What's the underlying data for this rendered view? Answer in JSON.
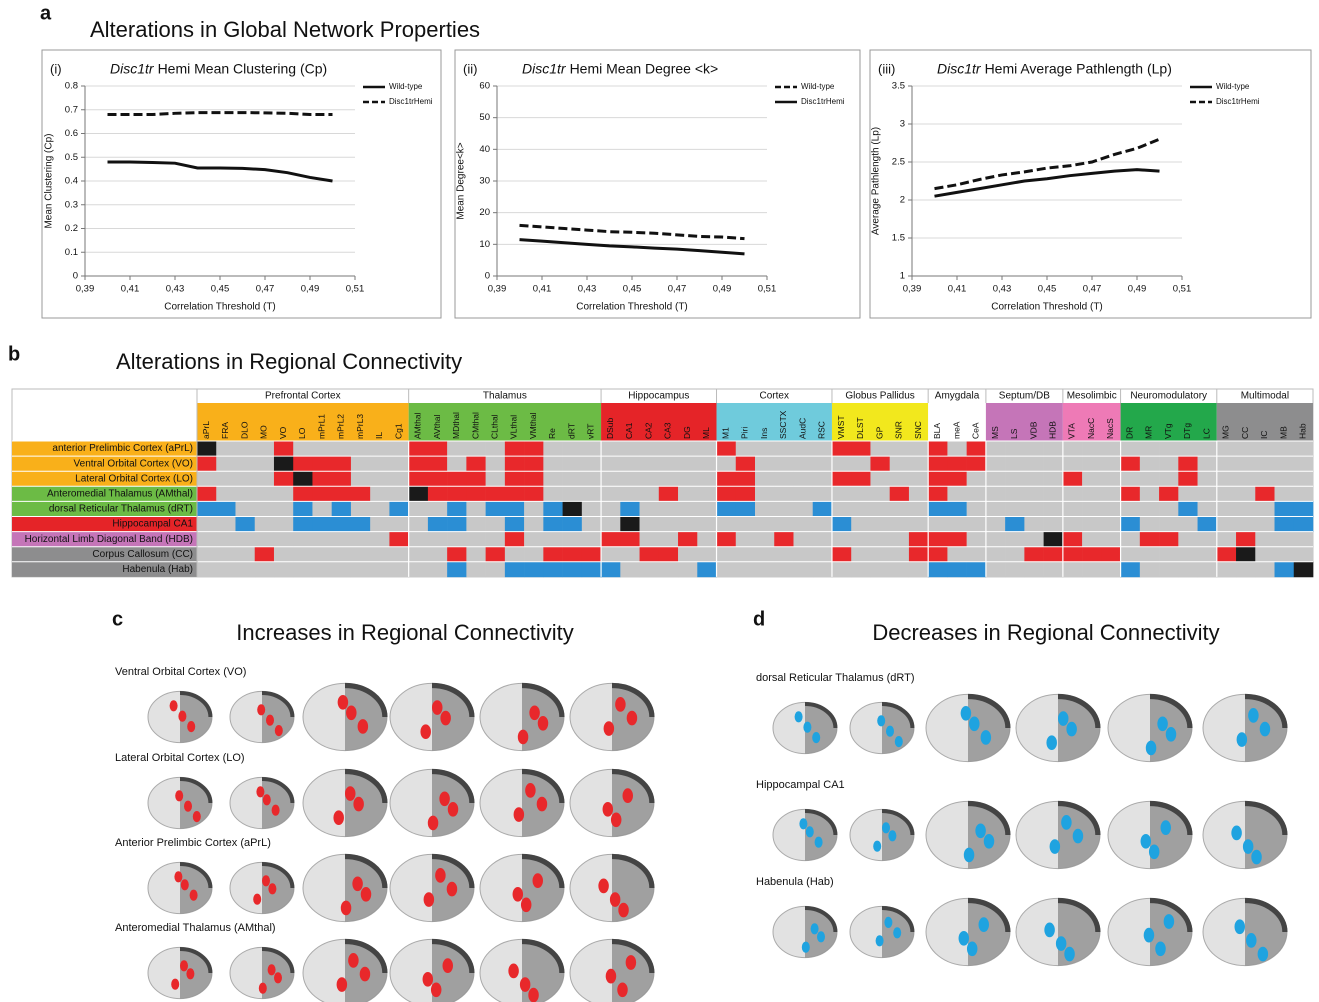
{
  "panels": [
    {
      "letter": "a",
      "title": "Alterations in Global Network Properties"
    },
    {
      "letter": "b",
      "title": "Alterations in Regional Connectivity"
    },
    {
      "letter": "c",
      "title": "Increases in Regional Connectivity",
      "rows": [
        "Ventral Orbital Cortex (VO)",
        "Lateral Orbital Cortex (LO)",
        "Anterior Prelimbic Cortex (aPrL)",
        "Anteromedial Thalamus (AMthal)"
      ]
    },
    {
      "letter": "d",
      "title": "Decreases in Regional Connectivity",
      "rows": [
        "dorsal Reticular Thalamus (dRT)",
        "Hippocampal CA1",
        "Habenula (Hab)"
      ]
    }
  ],
  "chart_data": [
    {
      "type": "line",
      "panel_label": "(i)",
      "title_italic": "Disc1tr",
      "title": "Hemi Mean Clustering (Cp)",
      "xlabel": "Correlation Threshold (T)",
      "ylabel": "Mean Clustering (Cp)",
      "x": [
        0.4,
        0.41,
        0.42,
        0.43,
        0.44,
        0.45,
        0.46,
        0.47,
        0.48,
        0.49,
        0.5
      ],
      "xlim": [
        0.39,
        0.51
      ],
      "xticks": [
        {
          "value": 0.39,
          "label": "0,39"
        },
        {
          "value": 0.41,
          "label": "0,41"
        },
        {
          "value": 0.43,
          "label": "0,43"
        },
        {
          "value": 0.45,
          "label": "0,45"
        },
        {
          "value": 0.47,
          "label": "0,47"
        },
        {
          "value": 0.49,
          "label": "0,49"
        },
        {
          "value": 0.51,
          "label": "0,51"
        }
      ],
      "ylim": [
        0,
        0.8
      ],
      "yticks": [
        0,
        0.1,
        0.2,
        0.3,
        0.4,
        0.5,
        0.6,
        0.7,
        0.8
      ],
      "grid": true,
      "legend": "right",
      "series": [
        {
          "name": "Wild-type",
          "color": "#111111",
          "line_style": "solid",
          "values": [
            0.48,
            0.48,
            0.478,
            0.475,
            0.455,
            0.455,
            0.453,
            0.448,
            0.435,
            0.415,
            0.4
          ]
        },
        {
          "name": "Disc1trHemi",
          "color": "#111111",
          "line_style": "dashed",
          "values": [
            0.68,
            0.68,
            0.68,
            0.685,
            0.688,
            0.688,
            0.688,
            0.687,
            0.685,
            0.68,
            0.68
          ]
        }
      ]
    },
    {
      "type": "line",
      "panel_label": "(ii)",
      "title_italic": "Disc1tr",
      "title": "Hemi Mean Degree <k>",
      "xlabel": "Correlation Threshold (T)",
      "ylabel": "Mean Degree<k>",
      "x": [
        0.4,
        0.41,
        0.42,
        0.43,
        0.44,
        0.45,
        0.46,
        0.47,
        0.48,
        0.49,
        0.5
      ],
      "xlim": [
        0.39,
        0.51
      ],
      "xticks": [
        {
          "value": 0.39,
          "label": "0,39"
        },
        {
          "value": 0.41,
          "label": "0,41"
        },
        {
          "value": 0.43,
          "label": "0,43"
        },
        {
          "value": 0.45,
          "label": "0,45"
        },
        {
          "value": 0.47,
          "label": "0,47"
        },
        {
          "value": 0.49,
          "label": "0,49"
        },
        {
          "value": 0.51,
          "label": "0,51"
        }
      ],
      "ylim": [
        0,
        60
      ],
      "yticks": [
        0,
        10,
        20,
        30,
        40,
        50,
        60
      ],
      "grid": true,
      "legend": "right",
      "series": [
        {
          "name": "Wild-type",
          "color": "#111111",
          "line_style": "dashed",
          "values": [
            16,
            15.5,
            15,
            14.5,
            14,
            13.8,
            13.5,
            13,
            12.5,
            12.3,
            11.8
          ]
        },
        {
          "name": "Disc1trHemi",
          "color": "#111111",
          "line_style": "solid",
          "values": [
            11.5,
            11,
            10.5,
            10,
            9.5,
            9.2,
            8.8,
            8.5,
            8,
            7.5,
            7
          ]
        }
      ]
    },
    {
      "type": "line",
      "panel_label": "(iii)",
      "title_italic": "Disc1tr",
      "title": "Hemi Average Pathlength (Lp)",
      "xlabel": "Correlation Threshold (T)",
      "ylabel": "Average Pathlength (Lp)",
      "x": [
        0.4,
        0.41,
        0.42,
        0.43,
        0.44,
        0.45,
        0.46,
        0.47,
        0.48,
        0.49,
        0.5
      ],
      "xlim": [
        0.39,
        0.51
      ],
      "xticks": [
        {
          "value": 0.39,
          "label": "0,39"
        },
        {
          "value": 0.41,
          "label": "0,41"
        },
        {
          "value": 0.43,
          "label": "0,43"
        },
        {
          "value": 0.45,
          "label": "0,45"
        },
        {
          "value": 0.47,
          "label": "0,47"
        },
        {
          "value": 0.49,
          "label": "0,49"
        },
        {
          "value": 0.51,
          "label": "0,51"
        }
      ],
      "ylim": [
        1,
        3.5
      ],
      "yticks": [
        1,
        1.5,
        2,
        2.5,
        3,
        3.5
      ],
      "grid": true,
      "legend": "right",
      "series": [
        {
          "name": "Wild-type",
          "color": "#111111",
          "line_style": "solid",
          "values": [
            2.05,
            2.1,
            2.15,
            2.2,
            2.25,
            2.28,
            2.32,
            2.35,
            2.38,
            2.4,
            2.38
          ]
        },
        {
          "name": "Disc1trHemi",
          "color": "#111111",
          "line_style": "dashed",
          "values": [
            2.15,
            2.2,
            2.27,
            2.33,
            2.37,
            2.42,
            2.45,
            2.5,
            2.6,
            2.68,
            2.8
          ]
        }
      ]
    },
    {
      "type": "heatmap",
      "colors": {
        "increase": "#e8282b",
        "decrease": "#2b8ed4",
        "none": "#c8c8c8",
        "self": "#1a1a1a"
      },
      "groups": [
        {
          "name": "Prefrontal Cortex",
          "color": "#f9b01a",
          "columns": [
            "aPrL",
            "FRA",
            "DLO",
            "MO",
            "VO",
            "LO",
            "mPrL1",
            "mPrL2",
            "mPrL3",
            "IL",
            "Cg1"
          ]
        },
        {
          "name": "Thalamus",
          "color": "#6cbb45",
          "columns": [
            "AMthal",
            "AVthal",
            "MDthal",
            "CMthal",
            "CLthal",
            "VLthal",
            "VMthal",
            "Re",
            "dRT",
            "vRT"
          ]
        },
        {
          "name": "Hippocampus",
          "color": "#e52428",
          "columns": [
            "DSub",
            "CA1",
            "CA2",
            "CA3",
            "DG",
            "ML"
          ]
        },
        {
          "name": "Cortex",
          "color": "#6fcbdc",
          "columns": [
            "M1",
            "Piri",
            "Ins",
            "SSCTX",
            "AudC",
            "RSC"
          ]
        },
        {
          "name": "Globus Pallidus",
          "color": "#f2e81d",
          "columns": [
            "VMST",
            "DLST",
            "GP",
            "SNR",
            "SNC"
          ]
        },
        {
          "name": "Amygdala",
          "color": "#ffffff",
          "columns": [
            "BLA",
            "meA",
            "CeA"
          ]
        },
        {
          "name": "Septum/DB",
          "color": "#c575b8",
          "columns": [
            "MS",
            "LS",
            "VDB",
            "HDB"
          ]
        },
        {
          "name": "Mesolimbic",
          "color": "#ee7ab6",
          "columns": [
            "VTA",
            "NacC",
            "NacS"
          ]
        },
        {
          "name": "Neuromodulatory",
          "color": "#23a84b",
          "columns": [
            "DR",
            "MR",
            "VTg",
            "DTg",
            "LC"
          ]
        },
        {
          "name": "Multimodal",
          "color": "#8d8d8e",
          "columns": [
            "MG",
            "CC",
            "IC",
            "MB",
            "Hab"
          ]
        }
      ],
      "rows": [
        {
          "label": "anterior Prelimbic Cortex (aPrL)",
          "color": "#f9b01a",
          "values": [
            null,
            0,
            0,
            0,
            1,
            0,
            0,
            0,
            0,
            0,
            0,
            1,
            1,
            0,
            0,
            0,
            1,
            1,
            0,
            0,
            0,
            0,
            0,
            0,
            0,
            0,
            0,
            1,
            0,
            0,
            0,
            0,
            0,
            1,
            1,
            0,
            0,
            0,
            1,
            0,
            1,
            0,
            0,
            0,
            0,
            0,
            0,
            0,
            0,
            0,
            0,
            0,
            0,
            0,
            0,
            0,
            0,
            0
          ]
        },
        {
          "label": "Ventral Orbital Cortex (VO)",
          "color": "#f9b01a",
          "values": [
            1,
            0,
            0,
            0,
            null,
            1,
            1,
            1,
            0,
            0,
            0,
            1,
            1,
            0,
            1,
            0,
            1,
            1,
            0,
            0,
            0,
            0,
            0,
            0,
            0,
            0,
            0,
            0,
            1,
            0,
            0,
            0,
            0,
            0,
            0,
            1,
            0,
            0,
            1,
            1,
            1,
            0,
            0,
            0,
            0,
            0,
            0,
            0,
            1,
            0,
            0,
            1,
            0,
            0,
            0,
            0,
            0,
            0
          ]
        },
        {
          "label": "Lateral Orbital Cortex (LO)",
          "color": "#f9b01a",
          "values": [
            0,
            0,
            0,
            0,
            1,
            null,
            1,
            1,
            0,
            0,
            0,
            1,
            1,
            1,
            1,
            0,
            1,
            1,
            0,
            0,
            0,
            0,
            0,
            0,
            0,
            0,
            0,
            1,
            1,
            0,
            0,
            0,
            0,
            1,
            1,
            0,
            0,
            0,
            1,
            1,
            0,
            0,
            0,
            0,
            0,
            1,
            0,
            0,
            0,
            0,
            0,
            1,
            0,
            0,
            0,
            0,
            0,
            0
          ]
        },
        {
          "label": "Anteromedial Thalamus (AMthal)",
          "color": "#6cbb45",
          "values": [
            1,
            0,
            0,
            0,
            0,
            1,
            1,
            1,
            1,
            0,
            0,
            null,
            1,
            1,
            1,
            1,
            1,
            1,
            0,
            0,
            0,
            0,
            0,
            0,
            1,
            0,
            0,
            1,
            1,
            0,
            0,
            0,
            0,
            0,
            0,
            0,
            1,
            0,
            1,
            0,
            0,
            0,
            0,
            0,
            0,
            0,
            0,
            0,
            1,
            0,
            1,
            0,
            0,
            0,
            0,
            1,
            0,
            0
          ]
        },
        {
          "label": "dorsal Reticular Thalamus (dRT)",
          "color": "#6cbb45",
          "values": [
            -1,
            -1,
            0,
            0,
            0,
            -1,
            0,
            -1,
            0,
            0,
            -1,
            0,
            0,
            -1,
            0,
            -1,
            -1,
            0,
            -1,
            null,
            0,
            0,
            -1,
            0,
            0,
            0,
            0,
            -1,
            -1,
            0,
            0,
            0,
            -1,
            0,
            0,
            0,
            0,
            0,
            -1,
            -1,
            0,
            0,
            0,
            0,
            0,
            0,
            0,
            0,
            0,
            0,
            0,
            -1,
            0,
            0,
            0,
            0,
            -1,
            -1
          ]
        },
        {
          "label": "Hippocampal CA1",
          "color": "#e52428",
          "values": [
            0,
            0,
            -1,
            0,
            0,
            -1,
            -1,
            -1,
            -1,
            0,
            0,
            0,
            -1,
            -1,
            0,
            0,
            -1,
            0,
            -1,
            -1,
            0,
            0,
            null,
            0,
            0,
            0,
            0,
            0,
            0,
            0,
            0,
            0,
            0,
            -1,
            0,
            0,
            0,
            0,
            0,
            0,
            0,
            0,
            -1,
            0,
            0,
            0,
            0,
            0,
            -1,
            0,
            0,
            0,
            -1,
            0,
            0,
            0,
            -1,
            -1
          ]
        },
        {
          "label": "Horizontal Limb Diagonal Band (HDB)",
          "color": "#c575b8",
          "values": [
            0,
            0,
            0,
            0,
            0,
            0,
            0,
            0,
            0,
            0,
            1,
            0,
            0,
            0,
            0,
            0,
            1,
            0,
            0,
            0,
            0,
            1,
            1,
            0,
            0,
            1,
            0,
            1,
            0,
            0,
            1,
            0,
            0,
            0,
            0,
            0,
            0,
            1,
            1,
            1,
            0,
            0,
            0,
            0,
            null,
            1,
            0,
            0,
            0,
            1,
            1,
            0,
            0,
            0,
            1,
            0,
            0,
            0
          ]
        },
        {
          "label": "Corpus Callosum (CC)",
          "color": "#8d8d8e",
          "values": [
            0,
            0,
            0,
            1,
            0,
            0,
            0,
            0,
            0,
            0,
            0,
            0,
            0,
            1,
            0,
            1,
            0,
            0,
            1,
            1,
            1,
            0,
            0,
            1,
            1,
            0,
            0,
            0,
            0,
            0,
            0,
            0,
            0,
            1,
            0,
            0,
            0,
            1,
            1,
            0,
            0,
            0,
            0,
            1,
            1,
            1,
            1,
            1,
            0,
            0,
            0,
            0,
            0,
            1,
            null,
            0,
            0,
            0
          ]
        },
        {
          "label": "Habenula (Hab)",
          "color": "#8d8d8e",
          "values": [
            0,
            0,
            0,
            0,
            0,
            0,
            0,
            0,
            0,
            0,
            0,
            0,
            0,
            -1,
            0,
            0,
            -1,
            -1,
            -1,
            -1,
            -1,
            -1,
            0,
            0,
            0,
            0,
            -1,
            0,
            0,
            0,
            0,
            0,
            0,
            0,
            0,
            0,
            0,
            0,
            -1,
            -1,
            -1,
            0,
            0,
            0,
            0,
            0,
            0,
            0,
            -1,
            0,
            0,
            0,
            0,
            0,
            0,
            0,
            -1,
            null
          ]
        }
      ]
    }
  ]
}
